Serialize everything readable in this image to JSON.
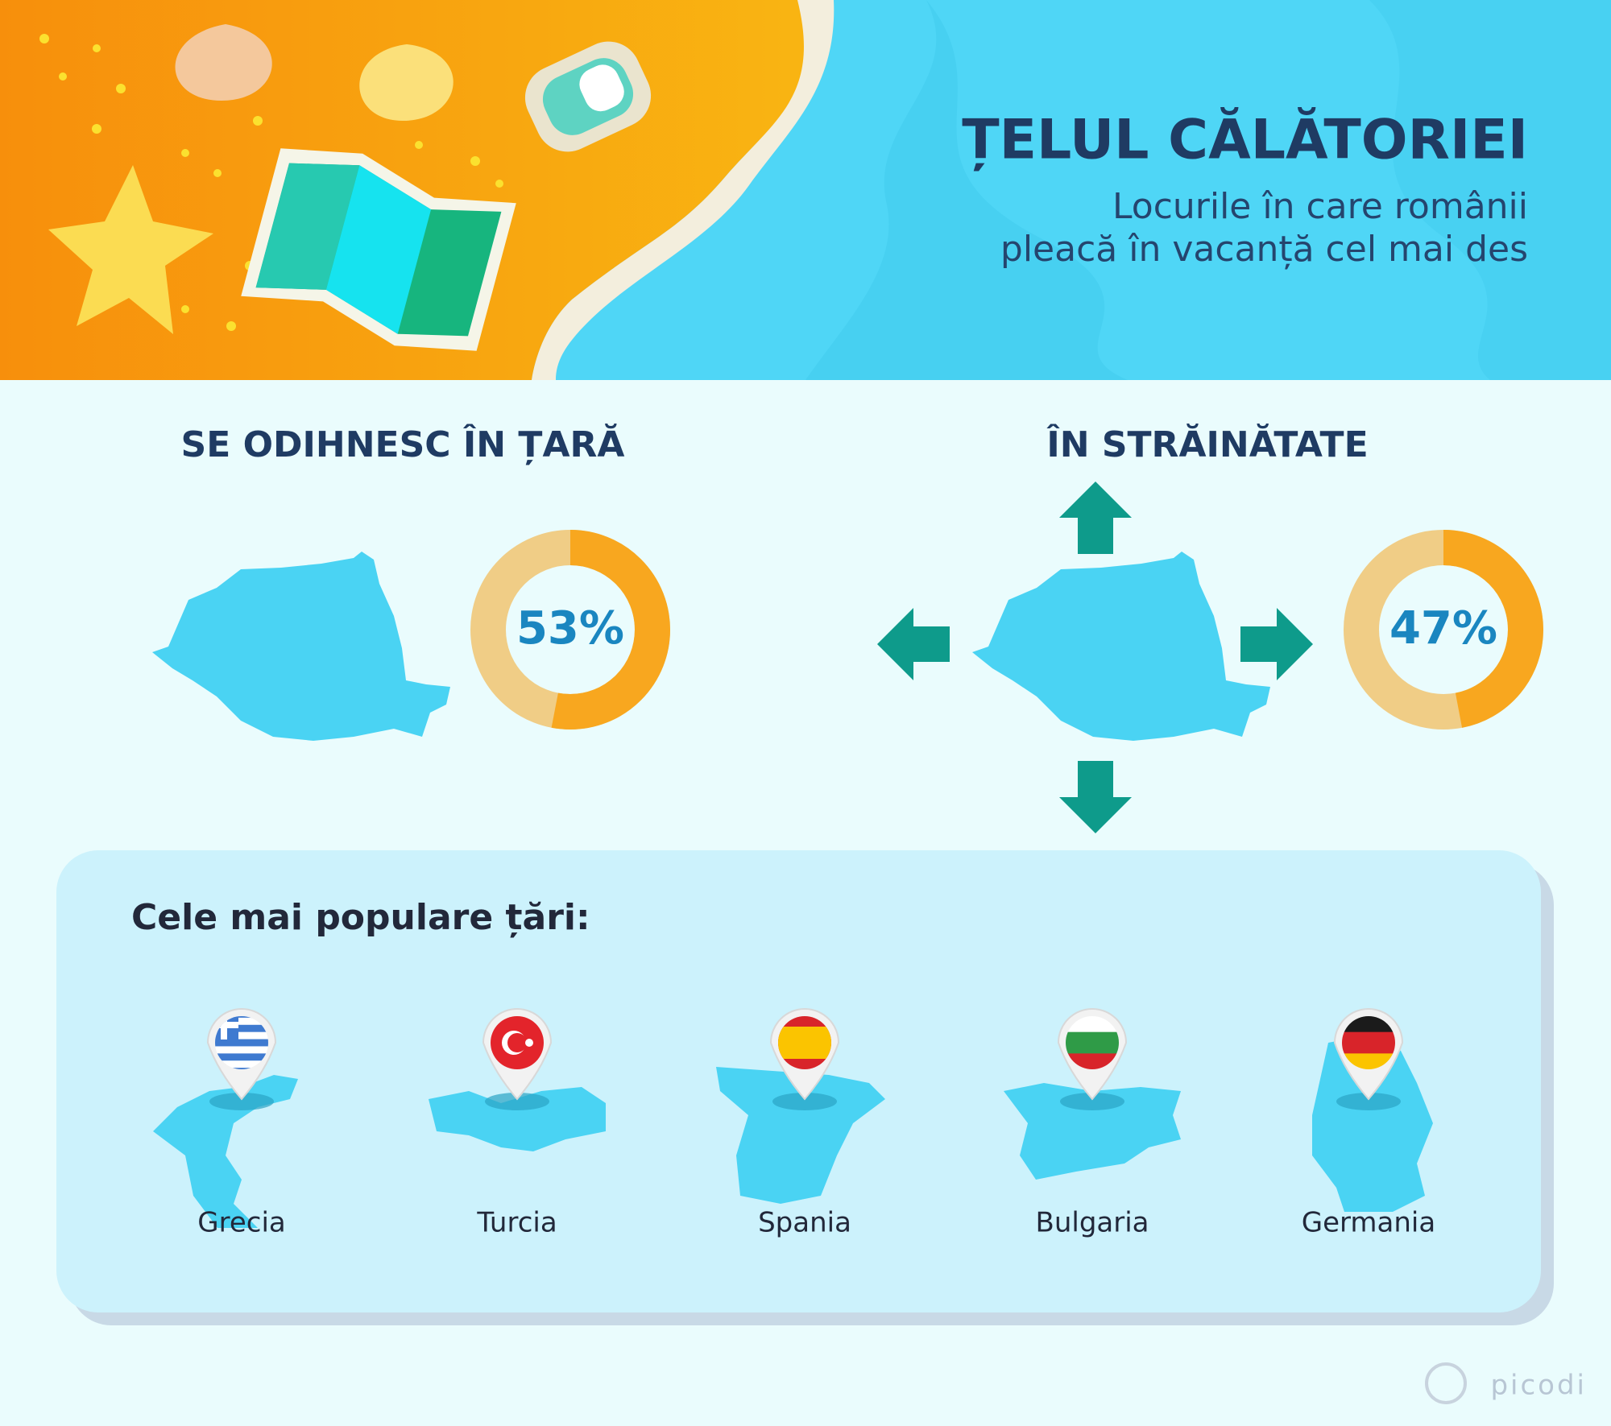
{
  "header": {
    "title": "ȚELUL CĂLĂTORIEI",
    "subtitle": [
      "Locurile în care românii",
      "pleacă în vacanță cel mai des"
    ]
  },
  "sections": [
    {
      "title": "SE ODIHNESC ÎN ȚARĂ",
      "value": 53,
      "value_label": "53%"
    },
    {
      "title": "ÎN STRĂINĂTATE",
      "value": 47,
      "value_label": "47%"
    }
  ],
  "popular": {
    "title": "Cele mai populare țări:",
    "countries": [
      "Grecia",
      "Turcia",
      "Spania",
      "Bulgaria",
      "Germania"
    ]
  },
  "brand": "picodi"
}
